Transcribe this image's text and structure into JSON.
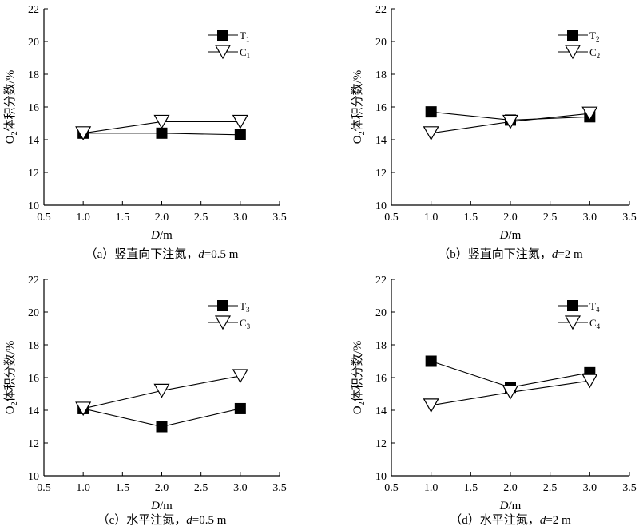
{
  "chart_data": [
    {
      "type": "line",
      "caption": "（a）竖直向下注氮，d=0.5 m",
      "caption_prefix": "（a）竖直向下注氮，",
      "caption_var": "d",
      "caption_suffix": "=0.5 m",
      "xlabel": "D",
      "xlabel_unit": "/m",
      "ylabel": "O2体积分数/%",
      "ylabel_main": "O",
      "ylabel_sub": "2",
      "ylabel_rest": "体积分数/%",
      "xlim": [
        0.5,
        3.5
      ],
      "ylim": [
        10,
        22
      ],
      "xticks": [
        "0.5",
        "1.0",
        "1.5",
        "2.0",
        "2.5",
        "3.0",
        "3.5"
      ],
      "yticks": [
        "10",
        "12",
        "14",
        "16",
        "18",
        "20",
        "22"
      ],
      "legend_position": "top-right",
      "series": [
        {
          "name": "T1",
          "name_main": "T",
          "name_sub": "1",
          "marker": "square",
          "x": [
            1.0,
            2.0,
            3.0
          ],
          "values": [
            14.4,
            14.4,
            14.3
          ]
        },
        {
          "name": "C1",
          "name_main": "C",
          "name_sub": "1",
          "marker": "triangle-down",
          "x": [
            1.0,
            2.0,
            3.0
          ],
          "values": [
            14.4,
            15.1,
            15.1
          ]
        }
      ]
    },
    {
      "type": "line",
      "caption": "（b）竖直向下注氮，d=2 m",
      "caption_prefix": "（b）竖直向下注氮，",
      "caption_var": "d",
      "caption_suffix": "=2 m",
      "xlabel": "D",
      "xlabel_unit": "/m",
      "ylabel": "O2体积分数/%",
      "ylabel_main": "O",
      "ylabel_sub": "2",
      "ylabel_rest": "体积分数/%",
      "xlim": [
        0.5,
        3.5
      ],
      "ylim": [
        10,
        22
      ],
      "xticks": [
        "0.5",
        "1.0",
        "1.5",
        "2.0",
        "2.5",
        "3.0",
        "3.5"
      ],
      "yticks": [
        "10",
        "12",
        "14",
        "16",
        "18",
        "20",
        "22"
      ],
      "legend_position": "top-right",
      "series": [
        {
          "name": "T2",
          "name_main": "T",
          "name_sub": "2",
          "marker": "square",
          "x": [
            1.0,
            2.0,
            3.0
          ],
          "values": [
            15.7,
            15.2,
            15.4
          ]
        },
        {
          "name": "C2",
          "name_main": "C",
          "name_sub": "2",
          "marker": "triangle-down",
          "x": [
            1.0,
            2.0,
            3.0
          ],
          "values": [
            14.4,
            15.1,
            15.6
          ]
        }
      ]
    },
    {
      "type": "line",
      "caption": "（c）水平注氮，d=0.5 m",
      "caption_prefix": "（c）水平注氮，",
      "caption_var": "d",
      "caption_suffix": "=0.5 m",
      "xlabel": "D",
      "xlabel_unit": "/m",
      "ylabel": "O2体积分数/%",
      "ylabel_main": "O",
      "ylabel_sub": "2",
      "ylabel_rest": "体积分数/%",
      "xlim": [
        0.5,
        3.5
      ],
      "ylim": [
        10,
        22
      ],
      "xticks": [
        "0.5",
        "1.0",
        "1.5",
        "2.0",
        "2.5",
        "3.0",
        "3.5"
      ],
      "yticks": [
        "10",
        "12",
        "14",
        "16",
        "18",
        "20",
        "22"
      ],
      "legend_position": "top-right",
      "series": [
        {
          "name": "T3",
          "name_main": "T",
          "name_sub": "3",
          "marker": "square",
          "x": [
            1.0,
            2.0,
            3.0
          ],
          "values": [
            14.1,
            13.0,
            14.1
          ]
        },
        {
          "name": "C3",
          "name_main": "C",
          "name_sub": "3",
          "marker": "triangle-down",
          "x": [
            1.0,
            2.0,
            3.0
          ],
          "values": [
            14.1,
            15.2,
            16.1
          ]
        }
      ]
    },
    {
      "type": "line",
      "caption": "（d）水平注氮，d=2 m",
      "caption_prefix": "（d）水平注氮，",
      "caption_var": "d",
      "caption_suffix": "=2 m",
      "xlabel": "D",
      "xlabel_unit": "/m",
      "ylabel": "O2体积分数/%",
      "ylabel_main": "O",
      "ylabel_sub": "2",
      "ylabel_rest": "体积分数/%",
      "xlim": [
        0.5,
        3.5
      ],
      "ylim": [
        10,
        22
      ],
      "xticks": [
        "0.5",
        "1.0",
        "1.5",
        "2.0",
        "2.5",
        "3.0",
        "3.5"
      ],
      "yticks": [
        "10",
        "12",
        "14",
        "16",
        "18",
        "20",
        "22"
      ],
      "legend_position": "top-right",
      "series": [
        {
          "name": "T4",
          "name_main": "T",
          "name_sub": "4",
          "marker": "square",
          "x": [
            1.0,
            2.0,
            3.0
          ],
          "values": [
            17.0,
            15.4,
            16.3
          ]
        },
        {
          "name": "C4",
          "name_main": "C",
          "name_sub": "4",
          "marker": "triangle-down",
          "x": [
            1.0,
            2.0,
            3.0
          ],
          "values": [
            14.3,
            15.1,
            15.8
          ]
        }
      ]
    }
  ]
}
